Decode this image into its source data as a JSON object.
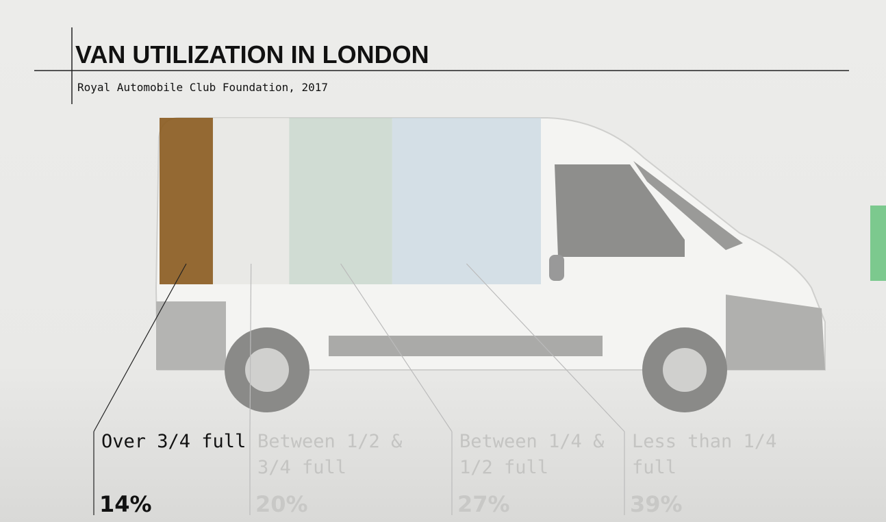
{
  "chart_data": {
    "type": "stacked-bar",
    "title": "VAN UTILIZATION IN LONDON",
    "subtitle": "Royal Automobile Club Foundation, 2017",
    "categories": [
      "Over 3/4 full",
      "Between 1/2 & 3/4 full",
      "Between 1/4 & 1/2 full",
      "Less than 1/4 full"
    ],
    "values": [
      14,
      20,
      27,
      39
    ],
    "value_labels": [
      "14%",
      "20%",
      "27%",
      "39%"
    ],
    "colors": [
      "#8a5a1e",
      "#e6e6e2",
      "#c4d4c8",
      "#c9d8e2"
    ],
    "xlim": [
      0,
      100
    ]
  }
}
